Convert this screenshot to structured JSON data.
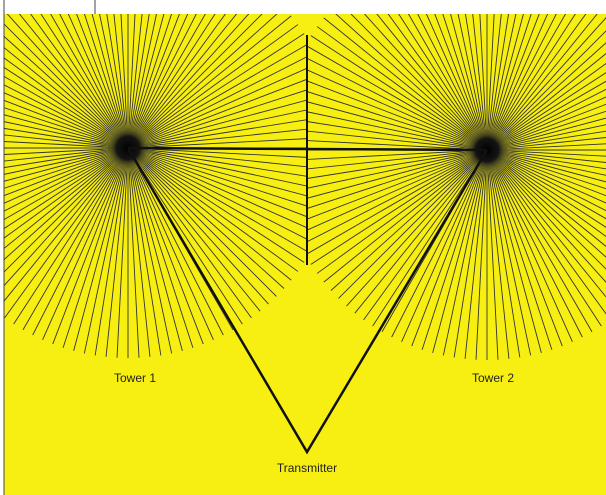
{
  "labels": {
    "tower1": "Tower 1",
    "tower2": "Tower 2",
    "transmitter": "Transmitter"
  }
}
